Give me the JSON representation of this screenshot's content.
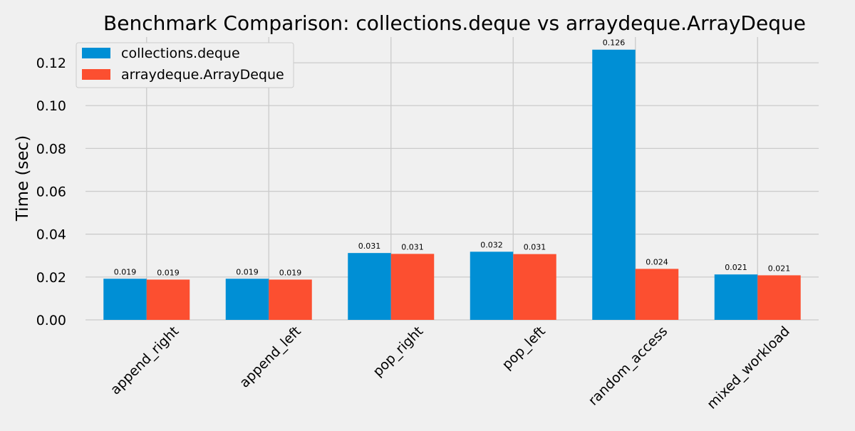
{
  "chart_data": {
    "type": "bar",
    "title": "Benchmark Comparison: collections.deque vs arraydeque.ArrayDeque",
    "xlabel": "",
    "ylabel": "Time (sec)",
    "ylim": [
      0,
      0.132
    ],
    "yticks": [
      0.0,
      0.02,
      0.04,
      0.06,
      0.08,
      0.1,
      0.12
    ],
    "ytick_labels": [
      "0.00",
      "0.02",
      "0.04",
      "0.06",
      "0.08",
      "0.10",
      "0.12"
    ],
    "grid": true,
    "legend_position": "top-left",
    "categories": [
      "append_right",
      "append_left",
      "pop_right",
      "pop_left",
      "random_access",
      "mixed_workload"
    ],
    "series": [
      {
        "name": "collections.deque",
        "color": "#008fd5",
        "values": [
          0.0192,
          0.0192,
          0.0312,
          0.0318,
          0.1261,
          0.0212
        ],
        "labels": [
          "0.019",
          "0.019",
          "0.031",
          "0.032",
          "0.126",
          "0.021"
        ]
      },
      {
        "name": "arraydeque.ArrayDeque",
        "color": "#fc4f30",
        "values": [
          0.0188,
          0.0188,
          0.0308,
          0.0307,
          0.0238,
          0.0208
        ],
        "labels": [
          "0.019",
          "0.019",
          "0.031",
          "0.031",
          "0.024",
          "0.021"
        ]
      }
    ]
  }
}
